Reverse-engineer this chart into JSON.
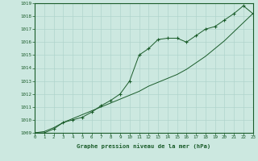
{
  "title": "Graphe pression niveau de la mer (hPa)",
  "bg_color": "#cce8e0",
  "grid_color": "#b0d4cc",
  "line_color": "#1a5c2a",
  "text_color": "#1a5c2a",
  "ylim": [
    1009.0,
    1019.0
  ],
  "xlim": [
    0,
    23
  ],
  "yticks": [
    1009,
    1010,
    1011,
    1012,
    1013,
    1014,
    1015,
    1016,
    1017,
    1018,
    1019
  ],
  "xticks": [
    0,
    1,
    2,
    3,
    4,
    5,
    6,
    7,
    8,
    9,
    10,
    11,
    12,
    13,
    14,
    15,
    16,
    17,
    18,
    19,
    20,
    21,
    22,
    23
  ],
  "series_marked": [
    1009.0,
    1009.0,
    1009.3,
    1009.8,
    1010.0,
    1010.2,
    1010.6,
    1011.1,
    1011.5,
    1012.0,
    1013.0,
    1015.0,
    1015.5,
    1016.2,
    1016.3,
    1016.3,
    1016.0,
    1016.5,
    1017.0,
    1017.2,
    1017.7,
    1018.2,
    1018.8,
    1018.2
  ],
  "series_straight": [
    1009.0,
    1009.1,
    1009.4,
    1009.8,
    1010.1,
    1010.4,
    1010.7,
    1011.0,
    1011.3,
    1011.6,
    1011.9,
    1012.2,
    1012.6,
    1012.9,
    1013.2,
    1013.5,
    1013.9,
    1014.4,
    1014.9,
    1015.5,
    1016.1,
    1016.8,
    1017.5,
    1018.2
  ]
}
